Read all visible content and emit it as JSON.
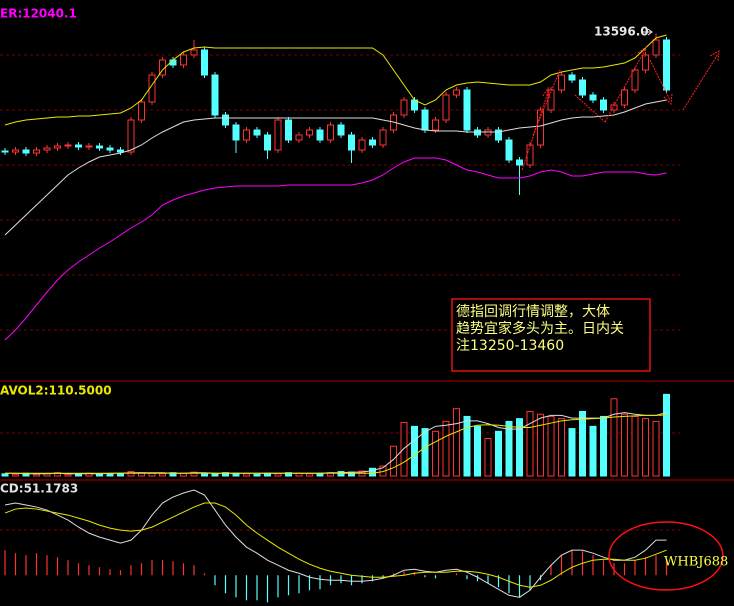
{
  "chart_data": [
    {
      "type": "candlestick",
      "label": "ER:12040.1",
      "high_label": "13596.0",
      "note_lines": [
        "德指回调行情调整，大体",
        "趋势宜家多头为主。日内关",
        "注13250-13460"
      ],
      "up_color": "#ff3232",
      "down_color": "#54ffff",
      "ylim": [
        10130,
        13930
      ],
      "open": [
        12420,
        12410,
        12430,
        12400,
        12430,
        12450,
        12470,
        12480,
        12460,
        12470,
        12450,
        12430,
        12410,
        12730,
        12910,
        13180,
        13330,
        13280,
        13380,
        13430,
        13180,
        12780,
        12680,
        12530,
        12630,
        12580,
        12430,
        12730,
        12530,
        12580,
        12630,
        12530,
        12680,
        12580,
        12430,
        12530,
        12480,
        12630,
        12780,
        12930,
        12830,
        12630,
        12730,
        12980,
        13030,
        12630,
        12580,
        12630,
        12530,
        12330,
        12280,
        12480,
        12830,
        13030,
        13180,
        13130,
        12980,
        12930,
        12830,
        12880,
        13030,
        13230,
        13380,
        13530
      ],
      "high": [
        12450,
        12460,
        12460,
        12460,
        12480,
        12500,
        12510,
        12510,
        12500,
        12500,
        12480,
        12460,
        12760,
        12940,
        13210,
        13360,
        13360,
        13410,
        13530,
        13460,
        13210,
        12810,
        12710,
        12660,
        12660,
        12610,
        12760,
        12760,
        12610,
        12660,
        12660,
        12710,
        12710,
        12610,
        12560,
        12560,
        12660,
        12810,
        12960,
        12960,
        12860,
        12760,
        13010,
        13060,
        13060,
        12660,
        12660,
        12660,
        12560,
        12360,
        12510,
        12860,
        13060,
        13210,
        13210,
        13160,
        13010,
        12960,
        12910,
        13060,
        13260,
        13410,
        13596,
        13560
      ],
      "low": [
        12380,
        12380,
        12370,
        12370,
        12400,
        12420,
        12440,
        12430,
        12430,
        12420,
        12400,
        12380,
        12380,
        12700,
        12880,
        13150,
        13250,
        13250,
        13350,
        13150,
        12750,
        12650,
        12400,
        12500,
        12550,
        12340,
        12400,
        12500,
        12500,
        12550,
        12500,
        12500,
        12550,
        12300,
        12400,
        12450,
        12450,
        12600,
        12750,
        12800,
        12600,
        12600,
        12700,
        12950,
        12600,
        12550,
        12550,
        12500,
        12300,
        11980,
        12250,
        12450,
        12800,
        13000,
        13100,
        12950,
        12900,
        12800,
        12800,
        12850,
        13000,
        13200,
        13350,
        13000
      ],
      "close": [
        12410,
        12430,
        12400,
        12430,
        12450,
        12470,
        12480,
        12460,
        12470,
        12450,
        12430,
        12410,
        12730,
        12910,
        13180,
        13330,
        13280,
        13380,
        13430,
        13180,
        12780,
        12680,
        12530,
        12630,
        12580,
        12430,
        12730,
        12530,
        12580,
        12630,
        12530,
        12680,
        12580,
        12430,
        12530,
        12480,
        12630,
        12780,
        12930,
        12830,
        12630,
        12730,
        12980,
        13030,
        12630,
        12580,
        12630,
        12530,
        12330,
        12280,
        12480,
        12830,
        13030,
        13180,
        13130,
        12980,
        12930,
        12830,
        12880,
        13030,
        13230,
        13380,
        13530,
        13030
      ],
      "lines": [
        {
          "color": "#e8e800",
          "values": [
            12680,
            12710,
            12730,
            12740,
            12750,
            12760,
            12760,
            12770,
            12770,
            12780,
            12790,
            12800,
            12850,
            12930,
            13080,
            13230,
            13330,
            13410,
            13450,
            13460,
            13450,
            13450,
            13450,
            13450,
            13450,
            13450,
            13450,
            13450,
            13450,
            13450,
            13450,
            13450,
            13450,
            13450,
            13450,
            13450,
            13380,
            13230,
            13080,
            12930,
            12880,
            12930,
            13030,
            13080,
            13100,
            13110,
            13100,
            13090,
            13080,
            13080,
            13080,
            13110,
            13180,
            13210,
            13230,
            13250,
            13250,
            13260,
            13280,
            13300,
            13350,
            13450,
            13550,
            13580
          ]
        },
        {
          "color": "#dddddd",
          "values": [
            11580,
            11680,
            11780,
            11880,
            11980,
            12080,
            12180,
            12250,
            12310,
            12360,
            12380,
            12400,
            12430,
            12480,
            12550,
            12610,
            12660,
            12710,
            12730,
            12740,
            12750,
            12750,
            12750,
            12750,
            12750,
            12750,
            12750,
            12750,
            12750,
            12750,
            12750,
            12750,
            12750,
            12750,
            12750,
            12750,
            12730,
            12710,
            12680,
            12650,
            12630,
            12620,
            12620,
            12620,
            12610,
            12610,
            12610,
            12610,
            12630,
            12650,
            12660,
            12670,
            12700,
            12730,
            12750,
            12760,
            12760,
            12770,
            12780,
            12810,
            12850,
            12890,
            12910,
            12930
          ]
        },
        {
          "color": "#ff00ff",
          "values": [
            10530,
            10630,
            10750,
            10880,
            11010,
            11130,
            11230,
            11310,
            11380,
            11450,
            11510,
            11580,
            11650,
            11710,
            11780,
            11880,
            11930,
            11970,
            12000,
            12030,
            12050,
            12060,
            12070,
            12070,
            12070,
            12070,
            12070,
            12080,
            12080,
            12080,
            12080,
            12080,
            12080,
            12080,
            12100,
            12130,
            12180,
            12250,
            12310,
            12350,
            12350,
            12350,
            12330,
            12280,
            12230,
            12210,
            12180,
            12150,
            12150,
            12150,
            12170,
            12210,
            12230,
            12210,
            12170,
            12170,
            12190,
            12210,
            12210,
            12210,
            12210,
            12190,
            12180,
            12200
          ]
        }
      ]
    },
    {
      "type": "volume",
      "label": "AVOL2:110.5000",
      "ylim": [
        0,
        165
      ],
      "values": [
        4,
        3,
        5,
        3,
        4,
        6,
        3,
        4,
        5,
        3,
        4,
        5,
        8,
        6,
        5,
        4,
        6,
        5,
        7,
        5,
        4,
        6,
        5,
        4,
        3,
        5,
        4,
        6,
        5,
        4,
        5,
        6,
        8,
        7,
        9,
        14,
        18,
        54,
        97,
        90,
        86,
        81,
        99,
        122,
        108,
        90,
        68,
        81,
        99,
        104,
        117,
        112,
        108,
        104,
        86,
        117,
        90,
        108,
        140,
        112,
        108,
        104,
        99,
        148
      ],
      "lines": [
        {
          "color": "#dddddd",
          "values": [
            5,
            5,
            4,
            4,
            4,
            5,
            4,
            4,
            4,
            4,
            5,
            5,
            6,
            6,
            6,
            6,
            5,
            5,
            6,
            6,
            5,
            5,
            5,
            5,
            5,
            5,
            5,
            5,
            5,
            5,
            5,
            6,
            6,
            7,
            7,
            10,
            15,
            30,
            50,
            65,
            80,
            90,
            92,
            95,
            100,
            100,
            95,
            88,
            85,
            85,
            95,
            105,
            110,
            110,
            105,
            105,
            105,
            105,
            112,
            115,
            112,
            110,
            110,
            115
          ]
        },
        {
          "color": "#e8e800",
          "values": [
            5,
            5,
            5,
            5,
            5,
            5,
            5,
            5,
            5,
            5,
            5,
            5,
            5,
            5,
            5,
            5,
            5,
            5,
            5,
            5,
            5,
            5,
            5,
            5,
            5,
            5,
            5,
            5,
            5,
            5,
            5,
            5,
            5,
            5,
            5,
            5,
            8,
            15,
            25,
            38,
            52,
            62,
            72,
            80,
            88,
            92,
            93,
            92,
            90,
            88,
            88,
            92,
            96,
            100,
            102,
            103,
            104,
            105,
            107,
            108,
            109,
            110,
            110,
            110.5
          ]
        }
      ]
    },
    {
      "type": "macd",
      "label": "CD:51.1783",
      "watermark": "WHBJ688",
      "ylim": [
        -46,
        132
      ],
      "up_color": "#ff3232",
      "down_color": "#54ffff",
      "values": [
        37.5,
        33,
        30,
        33,
        30,
        27,
        22.5,
        18,
        15,
        12,
        9,
        7.5,
        15,
        18,
        22.5,
        22.5,
        21,
        18,
        15,
        3,
        -15,
        -27,
        -33,
        -37.5,
        -37.5,
        -40.5,
        -33,
        -30,
        -27,
        -22.5,
        -21,
        -15,
        -12,
        -15,
        -12,
        -9,
        -4.5,
        3,
        6,
        4.5,
        -3,
        -4.5,
        0,
        3,
        -6,
        -9,
        -12,
        -18,
        -27,
        -33,
        -22.5,
        -7.5,
        15,
        30,
        37.5,
        36,
        30,
        22.5,
        18,
        18,
        22.5,
        27,
        30,
        21
      ],
      "lines": [
        {
          "color": "#dddddd",
          "values": [
            105,
            108,
            105,
            102,
            97.5,
            90,
            82.5,
            72,
            63,
            57,
            52.5,
            48,
            52.5,
            67.5,
            90,
            108,
            117,
            123,
            127.5,
            120,
            97.5,
            75,
            57,
            42,
            33,
            22.5,
            15,
            7.5,
            3,
            -3,
            -6,
            -7.5,
            -7.5,
            -9,
            -9,
            -7.5,
            -4.5,
            0,
            7.5,
            9,
            6,
            4.5,
            7.5,
            9,
            4.5,
            -3,
            -12,
            -21,
            -30,
            -33,
            -22.5,
            -3,
            15,
            30,
            37.5,
            37.5,
            33,
            27,
            22.5,
            22.5,
            27,
            37.5,
            52.5,
            52.5
          ]
        },
        {
          "color": "#e8e800",
          "values": [
            93,
            99,
            100.5,
            99,
            96,
            93,
            90,
            85.5,
            81,
            75,
            70.5,
            67.5,
            66,
            67.5,
            72,
            79.5,
            87,
            94.5,
            102,
            108,
            108,
            102,
            90,
            75,
            63,
            52.5,
            42,
            33,
            24,
            16.5,
            10.5,
            6,
            3,
            0,
            -1.5,
            -3,
            -3,
            -1.5,
            0,
            3,
            4.5,
            4.5,
            4.5,
            6,
            6,
            4.5,
            1.5,
            -3,
            -9,
            -15,
            -18,
            -15,
            -7.5,
            3,
            12,
            18,
            22.5,
            24,
            24,
            22.5,
            22.5,
            25.5,
            31.5,
            37.5
          ]
        }
      ]
    }
  ]
}
